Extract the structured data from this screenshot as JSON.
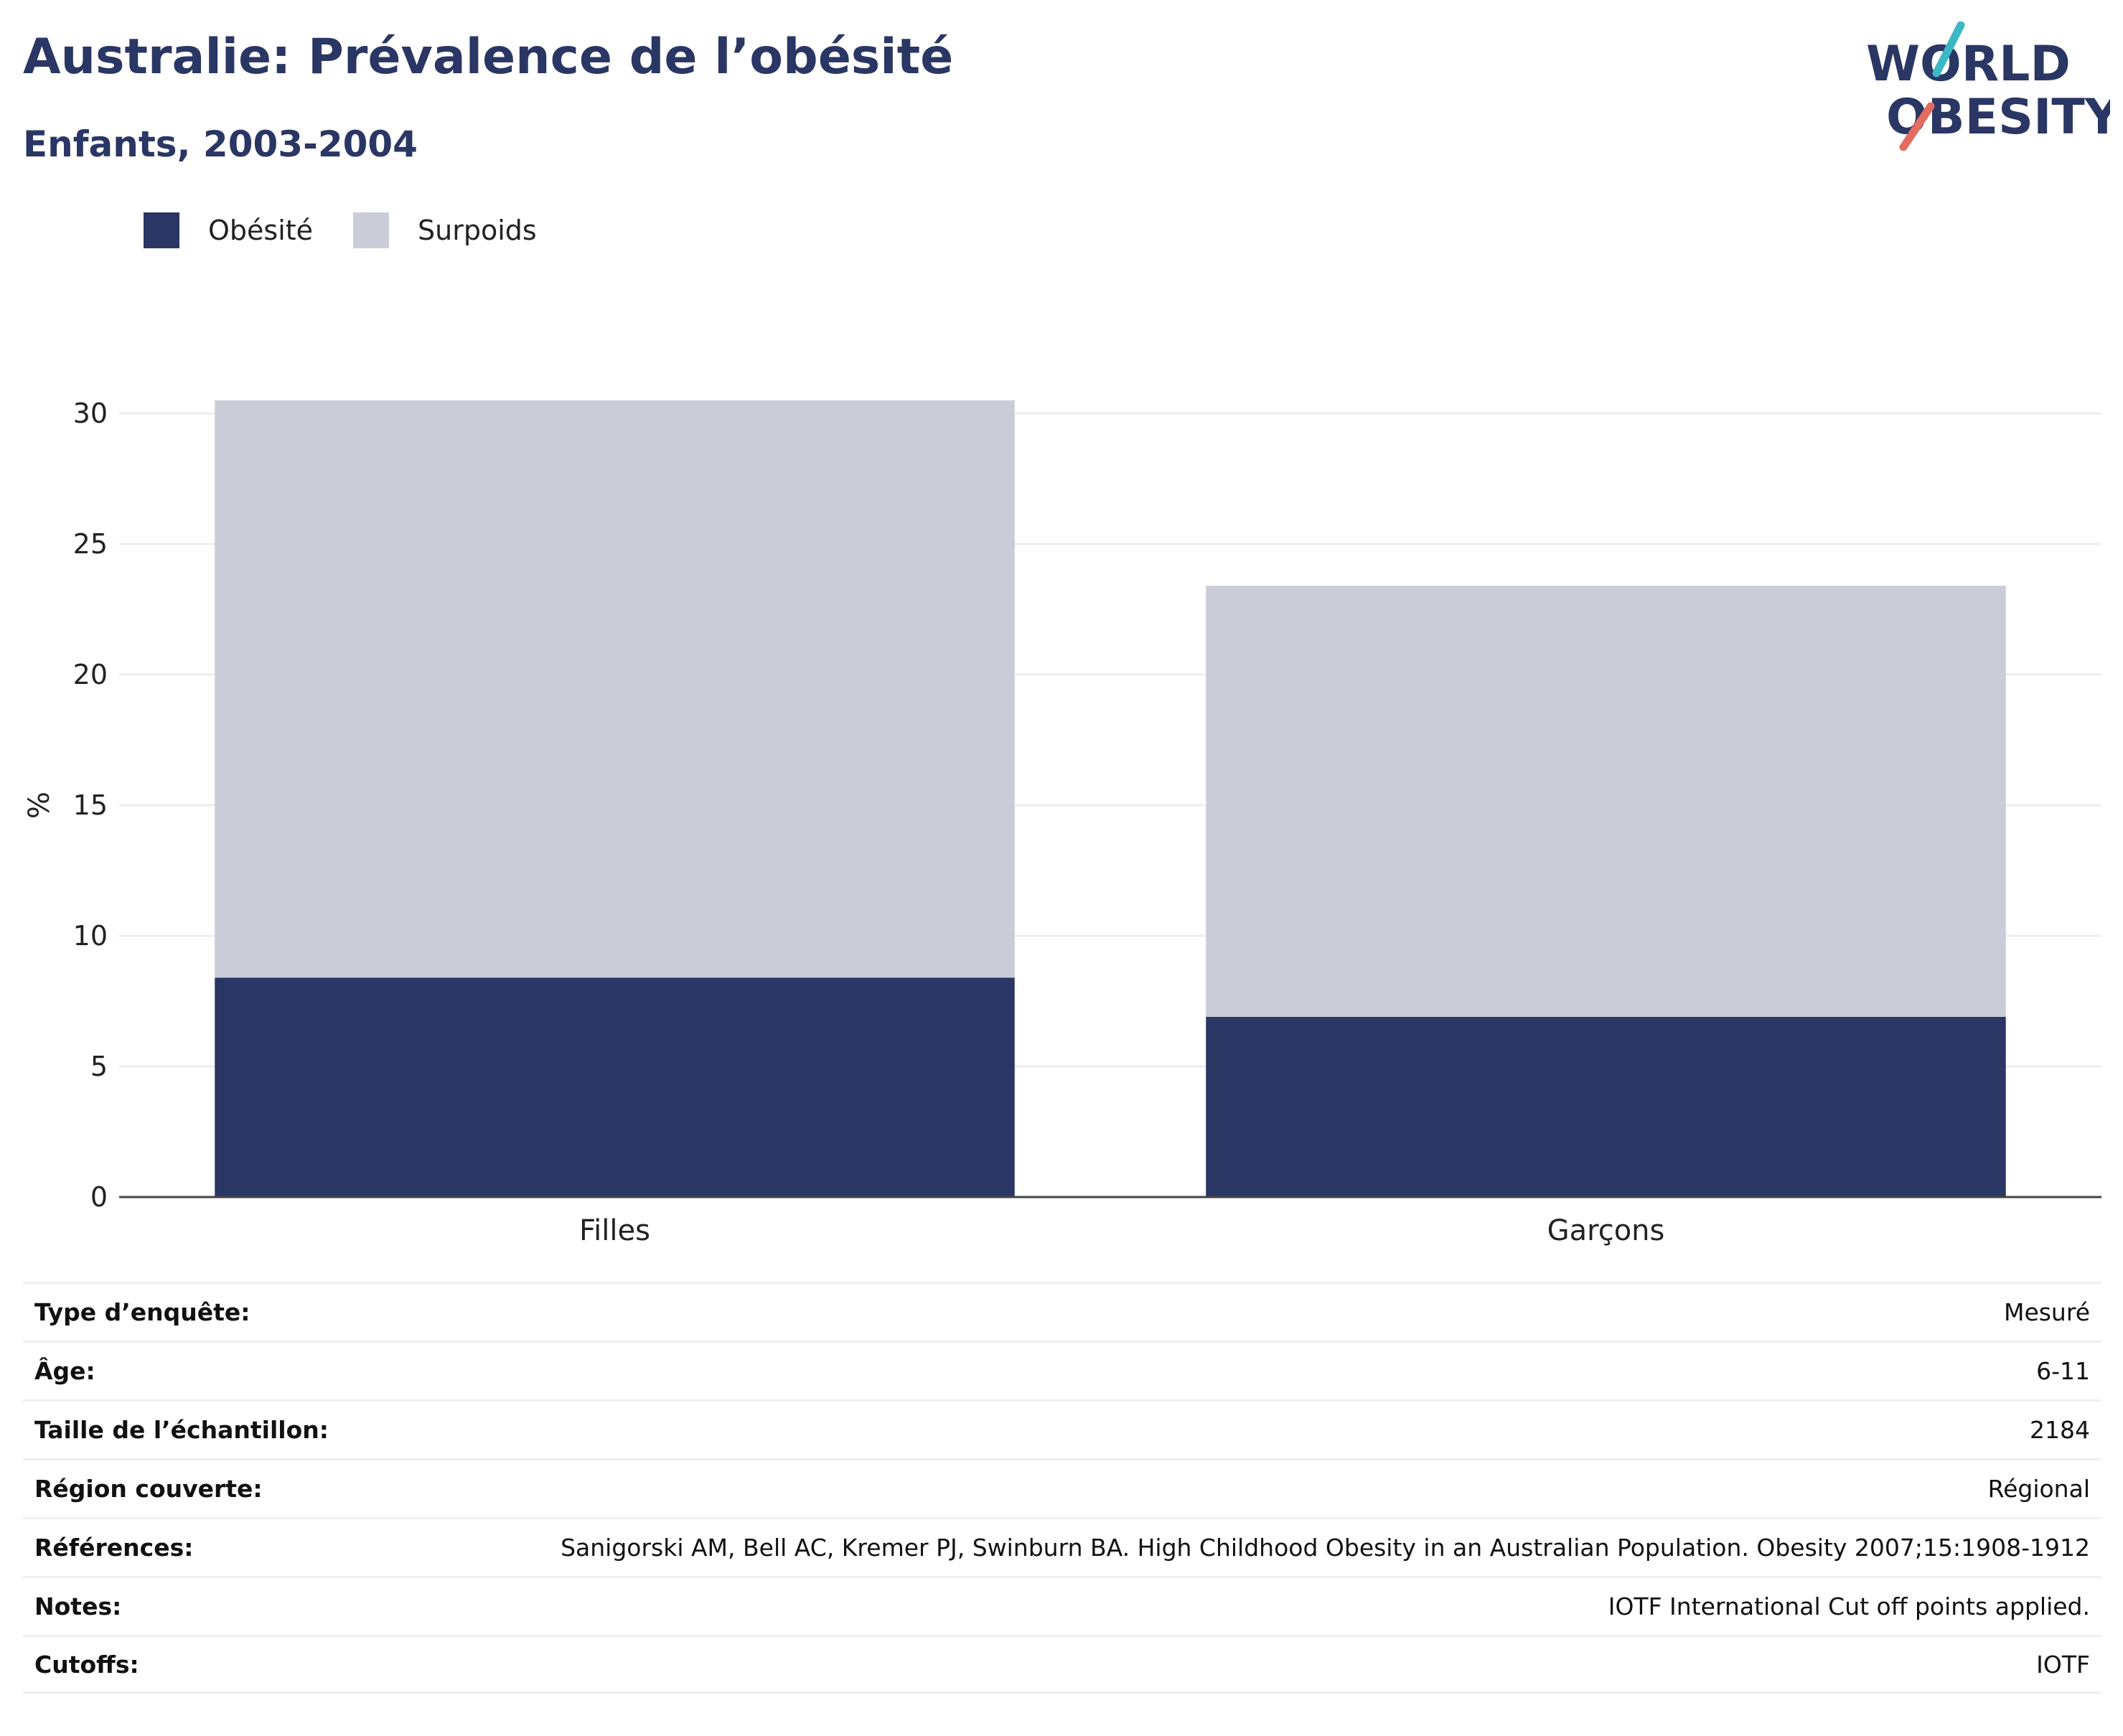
{
  "header": {
    "title": "Australie: Prévalence de l’obésité",
    "subtitle": "Enfants, 2003-2004"
  },
  "logo": {
    "text_line1": "WORLD",
    "text_line2": "OBESITY",
    "colors": [
      "#2a3664",
      "#3bb8c4",
      "#e36c5f"
    ]
  },
  "colors": {
    "obesity": "#2a3664",
    "overweight": "#cacdd8",
    "grid": "#eceef2",
    "axis": "#444444"
  },
  "chart_data": {
    "type": "bar",
    "stacked": true,
    "categories": [
      "Filles",
      "Garçons"
    ],
    "series": [
      {
        "name": "Obésité",
        "values": [
          8.4,
          6.9
        ]
      },
      {
        "name": "Surpoids",
        "values": [
          22.1,
          16.5
        ]
      }
    ],
    "ylabel": "%",
    "ylim": [
      0,
      30
    ],
    "yticks": [
      0,
      5,
      10,
      15,
      20,
      25,
      30
    ],
    "grid": true,
    "legend_position": "top-left"
  },
  "meta": [
    {
      "label": "Type d’enquête:",
      "value": "Mesuré"
    },
    {
      "label": "Âge:",
      "value": "6-11"
    },
    {
      "label": "Taille de l’échantillon:",
      "value": "2184"
    },
    {
      "label": "Région couverte:",
      "value": "Régional"
    },
    {
      "label": "Références:",
      "value": "Sanigorski AM, Bell AC, Kremer PJ, Swinburn BA. High Childhood Obesity in an Australian Population. Obesity 2007;15:1908-1912"
    },
    {
      "label": "Notes:",
      "value": "IOTF International Cut off points applied."
    },
    {
      "label": "Cutoffs:",
      "value": "IOTF"
    }
  ]
}
